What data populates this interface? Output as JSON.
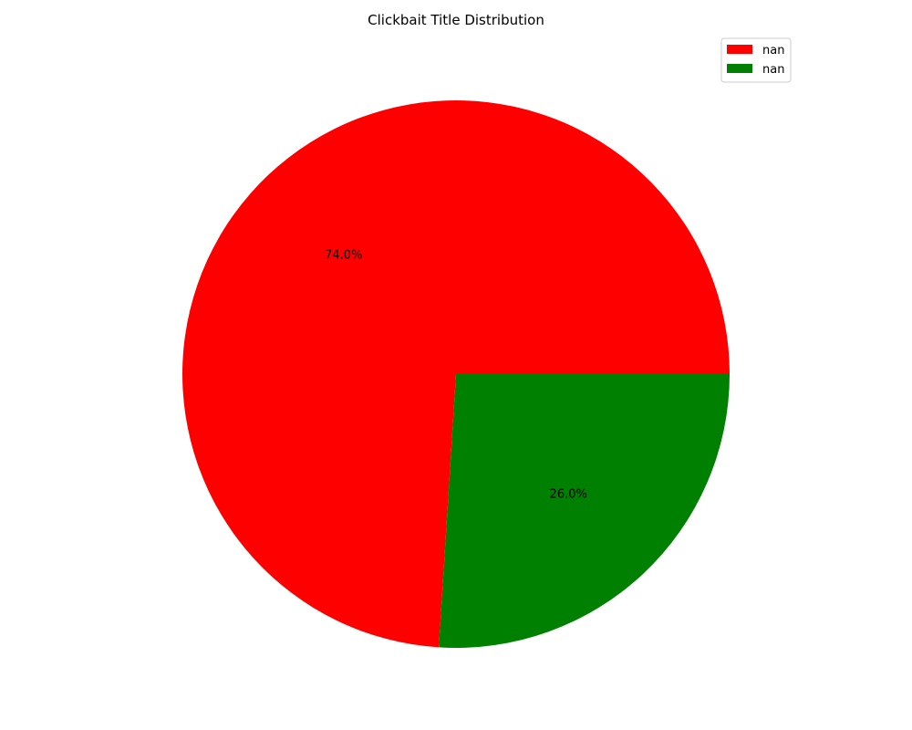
{
  "chart_data": {
    "type": "pie",
    "title": "Clickbait Title Distribution",
    "slices": [
      {
        "label": "nan",
        "value": 74.0,
        "pct_label": "74.0%",
        "color": "#ff0000"
      },
      {
        "label": "nan",
        "value": 26.0,
        "pct_label": "26.0%",
        "color": "#008000"
      }
    ],
    "start_angle_deg": 0,
    "direction": "counterclockwise",
    "legend_position": "top-right"
  }
}
